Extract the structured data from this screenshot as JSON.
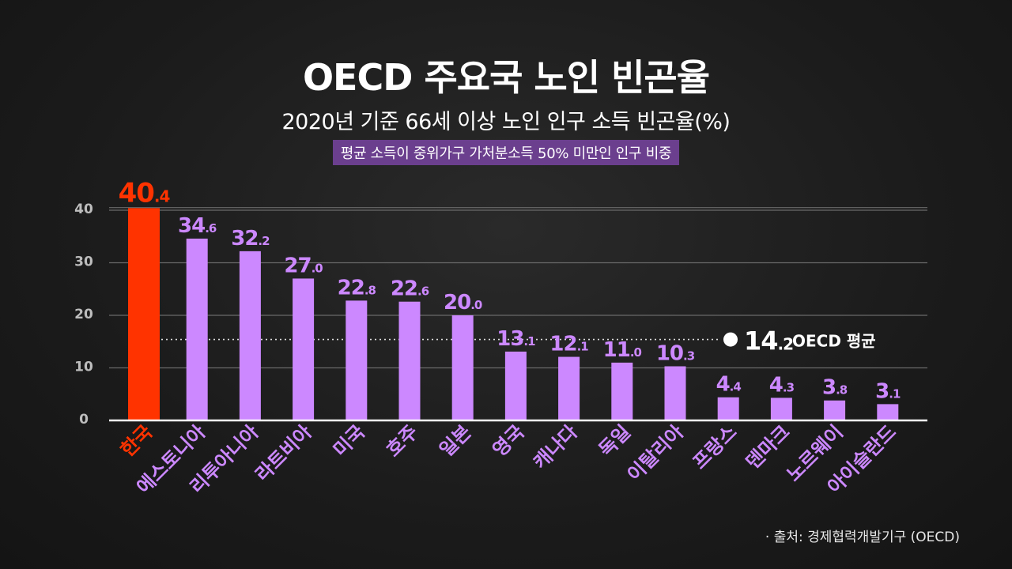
{
  "title": "OECD 주요국 노인 빈곤율",
  "subtitle": "2020년 기준 66세 이상 노인 인구 소득 빈곤율(%)",
  "note": "평균 소득이 중위가구 가처분소득 50% 미만인 인구 비중",
  "source": "· 출처: 경제협력개발기구 (OECD)",
  "colors": {
    "highlight": "#ff3300",
    "bar": "#cc88ff",
    "grid": "#6a6a6a",
    "axis": "#ffffff",
    "tick": "#bdbdbd"
  },
  "chart_data": {
    "type": "bar",
    "categories": [
      "한국",
      "에스토니아",
      "리투아니아",
      "라트비아",
      "미국",
      "호주",
      "일본",
      "영국",
      "캐나다",
      "독일",
      "이탈리아",
      "프랑스",
      "덴마크",
      "노르웨이",
      "아이슬란드"
    ],
    "values": [
      40.4,
      34.6,
      32.2,
      27.0,
      22.8,
      22.6,
      20.0,
      13.1,
      12.1,
      11.0,
      10.3,
      4.4,
      4.3,
      3.8,
      3.1
    ],
    "value_labels": [
      "40.4",
      "34.6",
      "32.2",
      "27.0",
      "22.8",
      "22.6",
      "20.0",
      "13.1",
      "12.1",
      "11.0",
      "10.3",
      "4.4",
      "4.3",
      "3.8",
      "3.1"
    ],
    "highlight_category": "한국",
    "yticks": [
      0,
      10,
      20,
      30,
      40
    ],
    "ylim": [
      0,
      40
    ],
    "grid": true,
    "reference_line": {
      "value": 14.2,
      "value_label": "14.2",
      "label": "OECD 평균"
    }
  }
}
